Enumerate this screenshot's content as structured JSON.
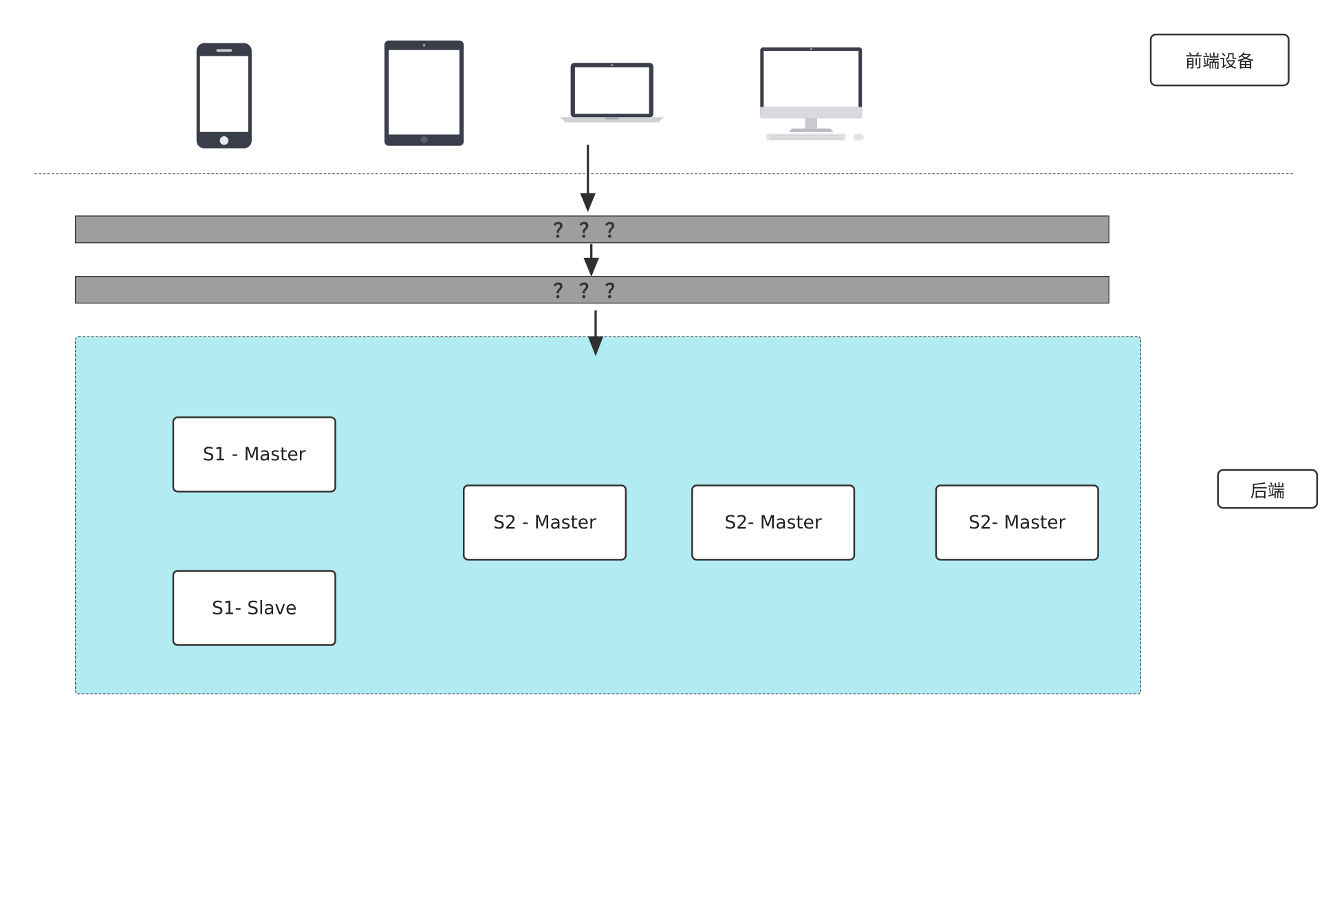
{
  "frontend": {
    "label": "前端设备",
    "devices": [
      {
        "name": "phone-icon"
      },
      {
        "name": "tablet-icon"
      },
      {
        "name": "laptop-icon"
      },
      {
        "name": "desktop-icon"
      }
    ]
  },
  "layers": [
    {
      "label": "？？？"
    },
    {
      "label": "？？？"
    }
  ],
  "backend": {
    "label": "后端",
    "nodes": [
      {
        "label": "S1 - Master"
      },
      {
        "label": "S1- Slave"
      },
      {
        "label": "S2 - Master"
      },
      {
        "label": "S2- Master"
      },
      {
        "label": "S2- Master"
      }
    ]
  },
  "colors": {
    "backend_fill": "#b2ebf2",
    "layer_fill": "#9e9e9e",
    "device_dark": "#3a3d4a",
    "stroke": "#333333"
  }
}
